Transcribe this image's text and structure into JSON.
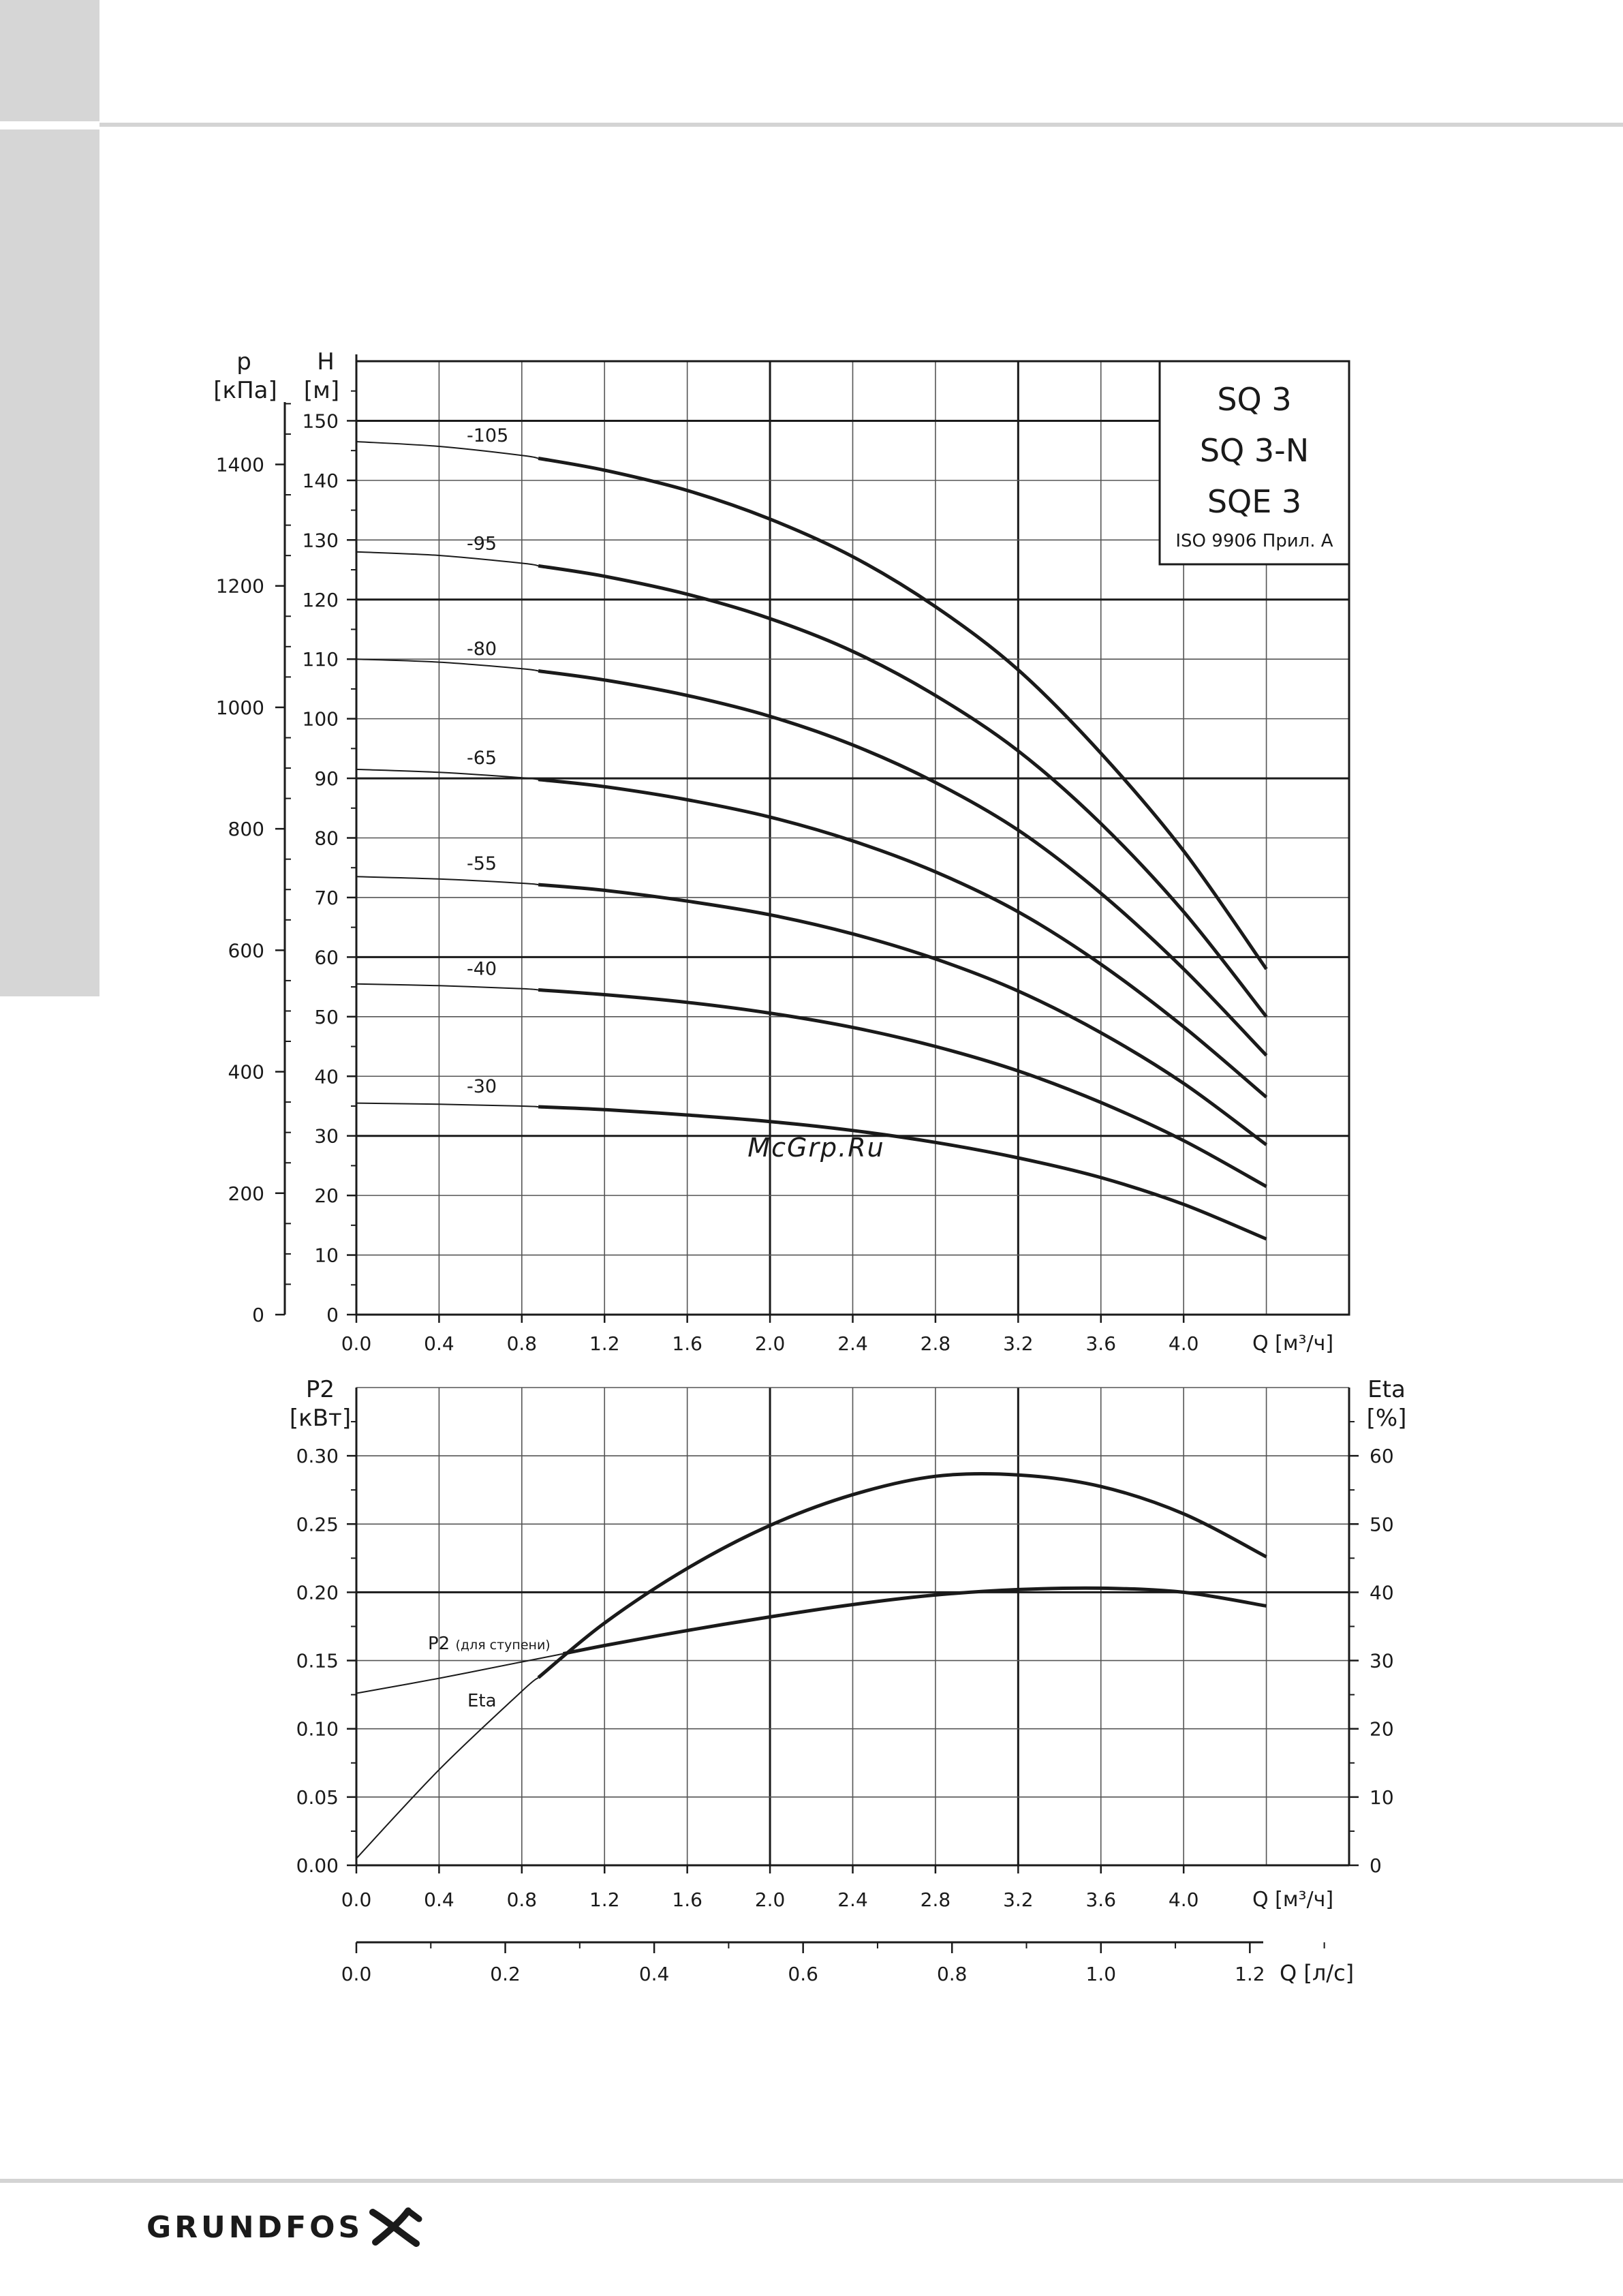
{
  "models": {
    "line1": "SQ 3",
    "line2": "SQ 3-N",
    "line3": "SQE 3",
    "standard": "ISO 9906 Прил. A"
  },
  "watermark": "McGrp.Ru",
  "brand": {
    "name": "GRUNDFOS",
    "mark": "grundfos-x-mark"
  },
  "colors": {
    "ink": "#1a1a1a",
    "grid": "#555555",
    "watermark": "#c0392b",
    "side_tab": "#d6d6d6"
  },
  "chart_data": [
    {
      "type": "line",
      "name": "head-curves",
      "xlabel": "Q [м³/ч]",
      "ylabel_left": "H\n[м]",
      "ylabel_outer": "p\n[кПа]",
      "xlim": [
        0,
        4.8
      ],
      "ylim": [
        0,
        160
      ],
      "x_ticks": [
        "0.0",
        "0.4",
        "0.8",
        "1.2",
        "1.6",
        "2.0",
        "2.4",
        "2.8",
        "3.2",
        "3.6",
        "4.0"
      ],
      "y_ticks": [
        "0",
        "10",
        "20",
        "30",
        "40",
        "50",
        "60",
        "70",
        "80",
        "90",
        "100",
        "110",
        "120",
        "130",
        "140",
        "150"
      ],
      "p_ticks": [
        "0",
        "200",
        "400",
        "600",
        "800",
        "1000",
        "1200",
        "1400"
      ],
      "p_range": [
        0,
        1570
      ],
      "grid": true,
      "x": [
        0,
        0.4,
        0.8,
        1.2,
        1.6,
        2.0,
        2.4,
        2.8,
        3.2,
        3.6,
        4.0,
        4.4
      ],
      "series": [
        {
          "name": "-105",
          "values": [
            146.5,
            145.7,
            144.2,
            141.7,
            138.3,
            133.5,
            127.2,
            118.8,
            108.2,
            94.2,
            77.8,
            58.0
          ]
        },
        {
          "name": "-95",
          "values": [
            128.0,
            127.4,
            126.1,
            123.9,
            120.9,
            116.8,
            111.3,
            103.9,
            94.6,
            82.4,
            67.6,
            50.0
          ]
        },
        {
          "name": "-80",
          "values": [
            110.0,
            109.5,
            108.4,
            106.5,
            103.9,
            100.4,
            95.6,
            89.3,
            81.3,
            70.7,
            58.0,
            43.5
          ]
        },
        {
          "name": "-65",
          "values": [
            91.5,
            91.0,
            90.1,
            88.6,
            86.4,
            83.5,
            79.5,
            74.3,
            67.6,
            58.8,
            48.3,
            36.5
          ]
        },
        {
          "name": "-55",
          "values": [
            73.5,
            73.1,
            72.4,
            71.2,
            69.4,
            67.1,
            63.9,
            59.7,
            54.3,
            47.3,
            38.8,
            28.5
          ]
        },
        {
          "name": "-40",
          "values": [
            55.5,
            55.2,
            54.7,
            53.7,
            52.4,
            50.6,
            48.2,
            45.0,
            40.9,
            35.6,
            29.2,
            21.5
          ]
        },
        {
          "name": "-30",
          "values": [
            35.5,
            35.3,
            35.0,
            34.4,
            33.5,
            32.4,
            30.9,
            28.9,
            26.3,
            23.0,
            18.5,
            12.7
          ]
        }
      ]
    },
    {
      "type": "line",
      "name": "power-efficiency",
      "xlabel": "Q [м³/ч]",
      "ylabel_left": "P2\n[кВт]",
      "ylabel_right": "Eta\n[%]",
      "xlim": [
        0,
        4.8
      ],
      "ylim_left": [
        0,
        0.35
      ],
      "ylim_right": [
        0,
        70
      ],
      "x_ticks": [
        "0.0",
        "0.4",
        "0.8",
        "1.2",
        "1.6",
        "2.0",
        "2.4",
        "2.8",
        "3.2",
        "3.6",
        "4.0"
      ],
      "y_ticks_left": [
        "0.00",
        "0.05",
        "0.10",
        "0.15",
        "0.20",
        "0.25",
        "0.30"
      ],
      "y_ticks_right": [
        "0",
        "10",
        "20",
        "30",
        "40",
        "50",
        "60"
      ],
      "grid": true,
      "annotations": [
        {
          "text": "P2",
          "small": "(для ступени)"
        },
        {
          "text": "Eta"
        }
      ],
      "x": [
        0,
        0.4,
        0.8,
        1.2,
        1.6,
        2.0,
        2.4,
        2.8,
        3.2,
        3.6,
        4.0,
        4.4
      ],
      "series": [
        {
          "name": "P2",
          "axis": "left",
          "values": [
            0.126,
            0.137,
            0.149,
            0.161,
            0.172,
            0.182,
            0.191,
            0.198,
            0.202,
            0.203,
            0.2,
            0.19
          ]
        },
        {
          "name": "Eta",
          "axis": "right",
          "values": [
            1,
            14,
            25.5,
            35.5,
            43.5,
            49.8,
            54.3,
            57.0,
            57.2,
            55.5,
            51.5,
            45.2
          ]
        }
      ]
    },
    {
      "type": "axis",
      "name": "flow-ls-scale",
      "xlabel": "Q [л/с]",
      "xlim": [
        0,
        1.3333
      ],
      "x_ticks": [
        "0.0",
        "0.2",
        "0.4",
        "0.6",
        "0.8",
        "1.0",
        "1.2"
      ]
    }
  ]
}
